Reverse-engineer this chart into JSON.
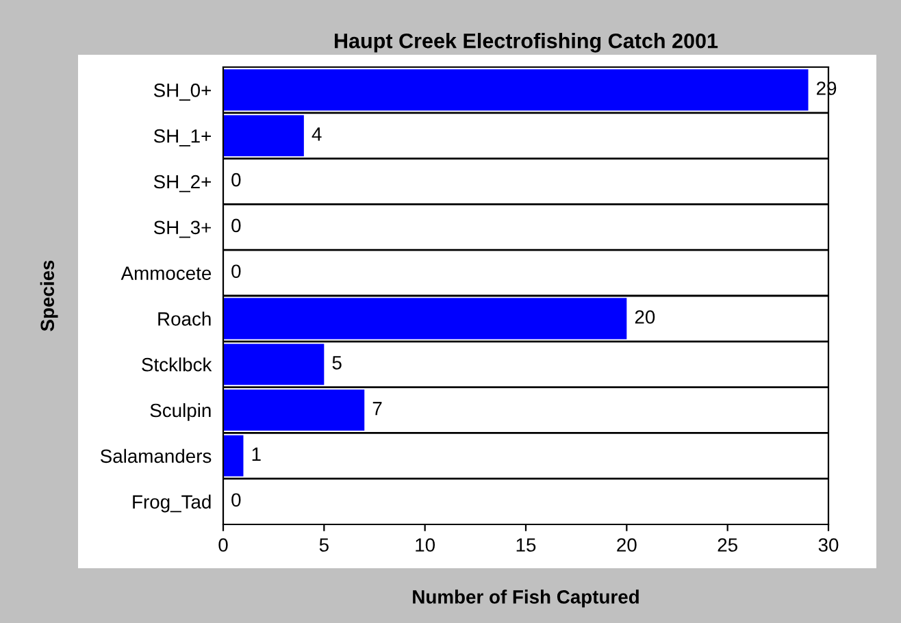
{
  "chart_data": {
    "type": "bar",
    "orientation": "horizontal",
    "title": "Haupt Creek Electrofishing Catch 2001",
    "xlabel": "Number of Fish Captured",
    "ylabel": "Species",
    "categories": [
      "SH_0+",
      "SH_1+",
      "SH_2+",
      "SH_3+",
      "Ammocete",
      "Roach",
      "Stcklbck",
      "Sculpin",
      "Salamanders",
      "Frog_Tad"
    ],
    "values": [
      29,
      4,
      0,
      0,
      0,
      20,
      5,
      7,
      1,
      0
    ],
    "color": "#0000ff",
    "xlim": [
      0,
      30
    ],
    "xticks": [
      0,
      5,
      10,
      15,
      20,
      25,
      30
    ],
    "grid": "y",
    "data_labels": true,
    "legend": false
  }
}
